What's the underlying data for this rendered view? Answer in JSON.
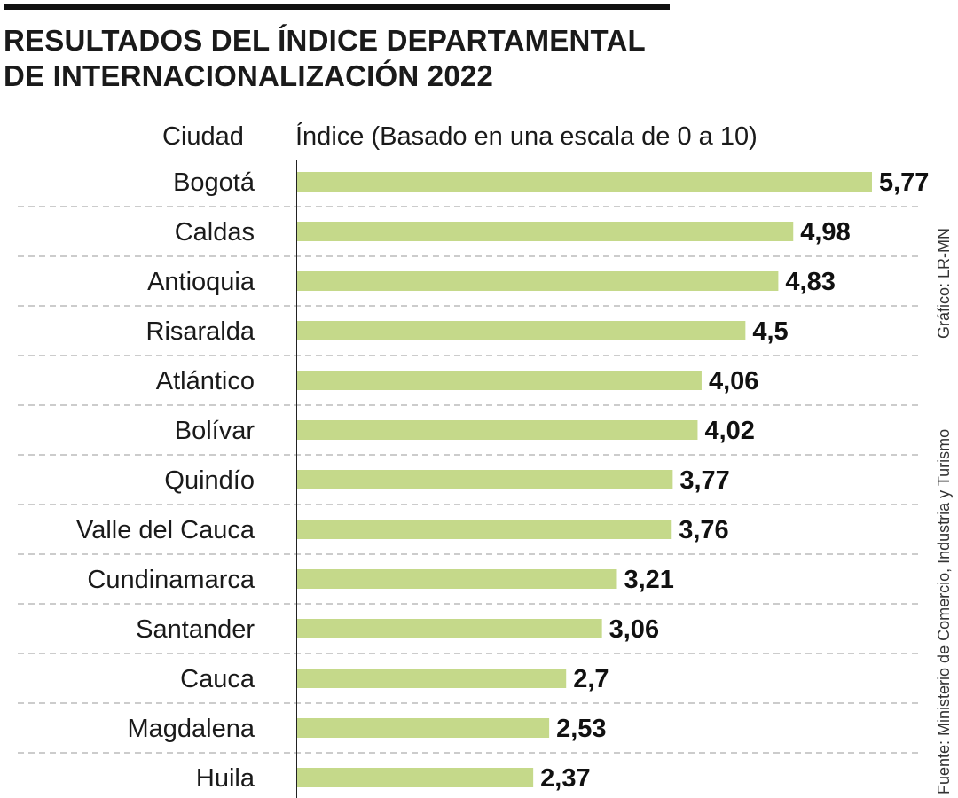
{
  "chart_data": {
    "type": "bar",
    "orientation": "horizontal",
    "title": "RESULTADOS DEL ÍNDICE DEPARTAMENTAL DE INTERNACIONALIZACIÓN 2022",
    "title_lines": [
      "RESULTADOS DEL ÍNDICE DEPARTAMENTAL",
      "DE INTERNACIONALIZACIÓN 2022"
    ],
    "category_header": "Ciudad",
    "value_header": "Índice (Basado en una escala de 0 a 10)",
    "categories": [
      "Bogotá",
      "Caldas",
      "Antioquia",
      "Risaralda",
      "Atlántico",
      "Bolívar",
      "Quindío",
      "Valle del Cauca",
      "Cundinamarca",
      "Santander",
      "Cauca",
      "Magdalena",
      "Huila"
    ],
    "values": [
      5.77,
      4.98,
      4.83,
      4.5,
      4.06,
      4.02,
      3.77,
      3.76,
      3.21,
      3.06,
      2.7,
      2.53,
      2.37
    ],
    "value_labels": [
      "5,77",
      "4,98",
      "4,83",
      "4,5",
      "4,06",
      "4,02",
      "3,77",
      "3,76",
      "3,21",
      "3,06",
      "2,7",
      "2,53",
      "2,37"
    ],
    "xlim": [
      0,
      5.77
    ],
    "grid": false,
    "bar_color": "#c5d98a",
    "credit": "Gráfico: LR-MN",
    "source": "Fuente: Ministerio de Comercio, Industria y Turismo"
  }
}
